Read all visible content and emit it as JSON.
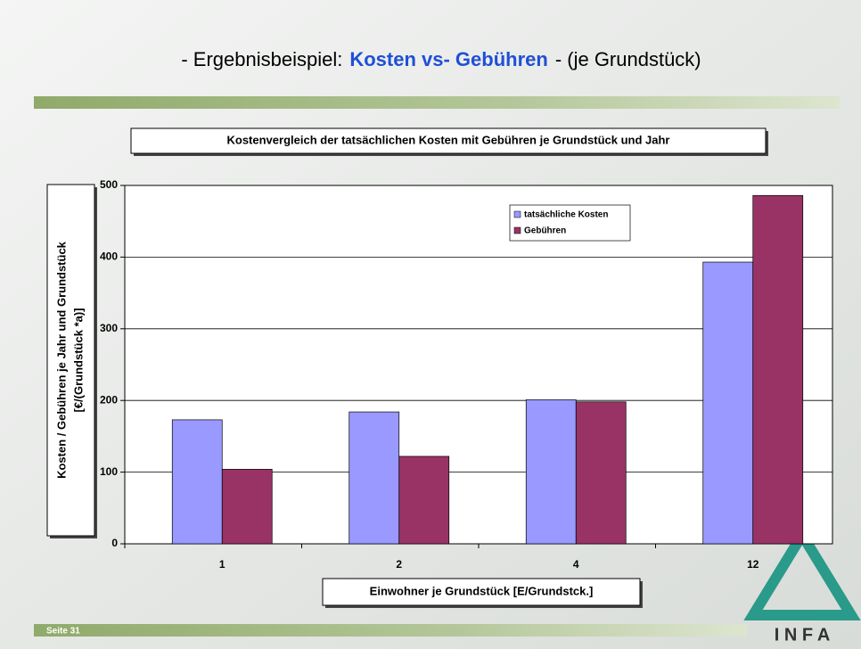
{
  "slide": {
    "title_prefix": "- Ergebnisbeispiel:",
    "title_highlight": "Kosten vs- Gebühren",
    "title_suffix": "- (je Grundstück)",
    "footer": "Seite 31",
    "logo": "I N F A"
  },
  "chart_data": {
    "type": "bar",
    "title": "Kostenvergleich der tatsächlichen Kosten mit Gebühren je Grundstück und Jahr",
    "xlabel": "Einwohner je Grundstück [E/Grundstck.]",
    "ylabel": [
      "Kosten / Gebühren je Jahr und Grundstück",
      "[€/(Grundstück *a)]"
    ],
    "categories": [
      "1",
      "2",
      "4",
      "12"
    ],
    "series": [
      {
        "name": "tatsächliche Kosten",
        "color": "#9999ff",
        "values": [
          173,
          184,
          201,
          393
        ]
      },
      {
        "name": "Gebühren",
        "color": "#993366",
        "values": [
          104,
          122,
          198,
          486
        ]
      }
    ],
    "ylim": [
      0,
      500
    ],
    "yticks": [
      0,
      100,
      200,
      300,
      400,
      500
    ],
    "grid": true,
    "legend": "top-right"
  }
}
